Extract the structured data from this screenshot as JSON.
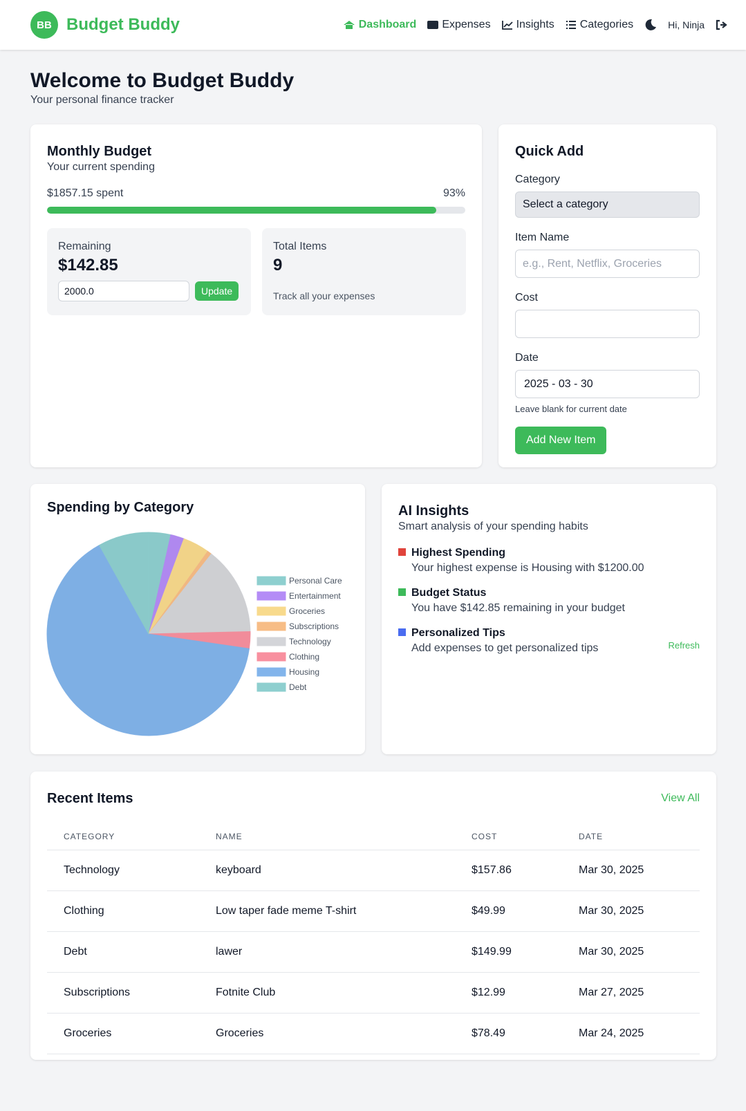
{
  "nav": {
    "logo": "BB",
    "brand": "Budget Buddy",
    "links": [
      "Dashboard",
      "Expenses",
      "Insights",
      "Categories"
    ],
    "greeting": "Hi, Ninja"
  },
  "header": {
    "title": "Welcome to Budget Buddy",
    "subtitle": "Your personal finance tracker"
  },
  "budget": {
    "title": "Monthly Budget",
    "subtitle": "Your current spending",
    "spent": "$1857.15 spent",
    "percent": "93%",
    "progress": 93,
    "remaining": {
      "label": "Remaining",
      "value": "$142.85",
      "input": "2000.0",
      "button": "Update"
    },
    "total": {
      "label": "Total Items",
      "value": "9",
      "note": "Track all your expenses"
    }
  },
  "quick_add": {
    "title": "Quick Add",
    "category": {
      "label": "Category",
      "value": "Select a category"
    },
    "item_name": {
      "label": "Item Name",
      "placeholder": "e.g., Rent, Netflix, Groceries"
    },
    "cost": {
      "label": "Cost"
    },
    "date": {
      "label": "Date",
      "value": "2025 - 03 - 30",
      "hint": "Leave blank for current date"
    },
    "button": "Add New Item"
  },
  "chart_data": {
    "type": "pie",
    "title": "Spending by Category",
    "categories": [
      "Personal Care",
      "Entertainment",
      "Groceries",
      "Subscriptions",
      "Technology",
      "Clothing",
      "Housing",
      "Debt"
    ],
    "values": [
      65,
      40,
      78.49,
      12.99,
      260.69,
      49.99,
      1200,
      149.99
    ],
    "colors": [
      "#8ecfcf",
      "#b48cf6",
      "#f8da8c",
      "#f7bd86",
      "#d4d5d9",
      "#f8909f",
      "#82b4eb",
      "#8ecfcf"
    ]
  },
  "insights": {
    "title": "AI Insights",
    "subtitle": "Smart analysis of your spending habits",
    "refresh": "Refresh",
    "items": [
      {
        "title": "Highest Spending",
        "text": "Your highest expense is Housing with $1200.00",
        "color": "#e0443c"
      },
      {
        "title": "Budget Status",
        "text": "You have $142.85 remaining in your budget",
        "color": "#3dba5a"
      },
      {
        "title": "Personalized Tips",
        "text": "Add expenses to get personalized tips",
        "color": "#4a6cf0"
      }
    ]
  },
  "recent": {
    "title": "Recent Items",
    "view_all": "View All",
    "columns": [
      "CATEGORY",
      "NAME",
      "COST",
      "DATE"
    ],
    "rows": [
      [
        "Technology",
        "keyboard",
        "$157.86",
        "Mar 30, 2025"
      ],
      [
        "Clothing",
        "Low taper fade meme T-shirt",
        "$49.99",
        "Mar 30, 2025"
      ],
      [
        "Debt",
        "lawer",
        "$149.99",
        "Mar 30, 2025"
      ],
      [
        "Subscriptions",
        "Fotnite Club",
        "$12.99",
        "Mar 27, 2025"
      ],
      [
        "Groceries",
        "Groceries",
        "$78.49",
        "Mar 24, 2025"
      ]
    ]
  }
}
